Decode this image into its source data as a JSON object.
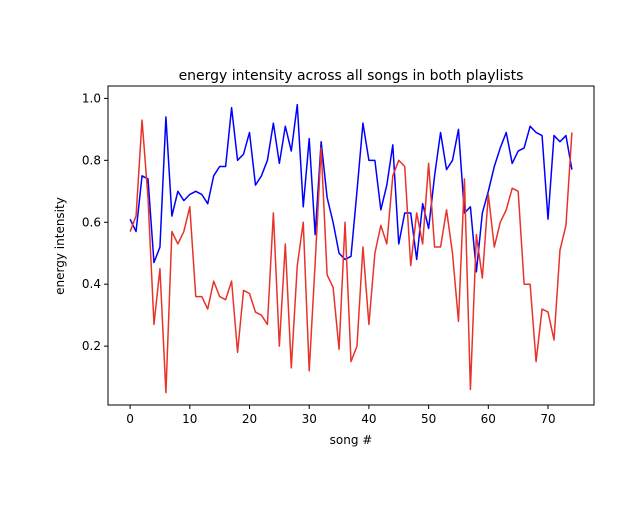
{
  "chart_data": {
    "type": "line",
    "title": "energy intensity across all songs in both playlists",
    "xlabel": "song #",
    "ylabel": "energy intensity",
    "xlim": [
      -3.7,
      77.7
    ],
    "ylim": [
      0.01,
      1.04
    ],
    "xticks": [
      0,
      10,
      20,
      30,
      40,
      50,
      60,
      70
    ],
    "yticks": [
      0.2,
      0.4,
      0.6,
      0.8,
      1.0
    ],
    "xtick_labels": [
      "0",
      "10",
      "20",
      "30",
      "40",
      "50",
      "60",
      "70"
    ],
    "ytick_labels": [
      "0.2",
      "0.4",
      "0.6",
      "0.8",
      "1.0"
    ],
    "grid": false,
    "series": [
      {
        "color": "#0000ff",
        "x": [
          0,
          1,
          2,
          3,
          4,
          5,
          6,
          7,
          8,
          9,
          10,
          11,
          12,
          13,
          14,
          15,
          16,
          17,
          18,
          19,
          20,
          21,
          22,
          23,
          24,
          25,
          26,
          27,
          28,
          29,
          30,
          31,
          32,
          33,
          34,
          35,
          36,
          37,
          38,
          39,
          40,
          41,
          42,
          43,
          44,
          45,
          46,
          47,
          48,
          49,
          50,
          51,
          52,
          53,
          54,
          55,
          56,
          57,
          58,
          59,
          60,
          61,
          62,
          63,
          64,
          65,
          66,
          67,
          68,
          69,
          70,
          71,
          72,
          73,
          74
        ],
        "values": [
          0.61,
          0.57,
          0.75,
          0.74,
          0.47,
          0.52,
          0.94,
          0.62,
          0.7,
          0.67,
          0.69,
          0.7,
          0.69,
          0.66,
          0.75,
          0.78,
          0.78,
          0.97,
          0.8,
          0.82,
          0.89,
          0.72,
          0.75,
          0.8,
          0.92,
          0.79,
          0.91,
          0.83,
          0.98,
          0.65,
          0.87,
          0.56,
          0.86,
          0.68,
          0.6,
          0.5,
          0.48,
          0.49,
          0.7,
          0.92,
          0.8,
          0.8,
          0.64,
          0.72,
          0.85,
          0.53,
          0.63,
          0.63,
          0.48,
          0.66,
          0.58,
          0.75,
          0.89,
          0.77,
          0.8,
          0.9,
          0.63,
          0.65,
          0.44,
          0.63,
          0.7,
          0.78,
          0.84,
          0.89,
          0.79,
          0.83,
          0.84,
          0.91,
          0.89,
          0.88,
          0.61,
          0.88,
          0.86,
          0.88,
          0.77
        ]
      },
      {
        "color": "#e8332a",
        "x": [
          0,
          1,
          2,
          3,
          4,
          5,
          6,
          7,
          8,
          9,
          10,
          11,
          12,
          13,
          14,
          15,
          16,
          17,
          18,
          19,
          20,
          21,
          22,
          23,
          24,
          25,
          26,
          27,
          28,
          29,
          30,
          31,
          32,
          33,
          34,
          35,
          36,
          37,
          38,
          39,
          40,
          41,
          42,
          43,
          44,
          45,
          46,
          47,
          48,
          49,
          50,
          51,
          52,
          53,
          54,
          55,
          56,
          57,
          58,
          59,
          60,
          61,
          62,
          63,
          64,
          65,
          66,
          67,
          68,
          69,
          70,
          71,
          72,
          73,
          74
        ],
        "values": [
          0.57,
          0.62,
          0.93,
          0.68,
          0.27,
          0.45,
          0.05,
          0.57,
          0.53,
          0.57,
          0.65,
          0.36,
          0.36,
          0.32,
          0.41,
          0.36,
          0.35,
          0.41,
          0.18,
          0.38,
          0.37,
          0.31,
          0.3,
          0.27,
          0.63,
          0.2,
          0.53,
          0.13,
          0.46,
          0.6,
          0.12,
          0.47,
          0.84,
          0.43,
          0.39,
          0.19,
          0.6,
          0.15,
          0.2,
          0.52,
          0.27,
          0.5,
          0.59,
          0.53,
          0.75,
          0.8,
          0.78,
          0.46,
          0.63,
          0.53,
          0.79,
          0.52,
          0.52,
          0.64,
          0.5,
          0.28,
          0.74,
          0.06,
          0.56,
          0.42,
          0.69,
          0.52,
          0.6,
          0.64,
          0.71,
          0.7,
          0.4,
          0.4,
          0.15,
          0.32,
          0.31,
          0.22,
          0.51,
          0.59,
          0.89
        ]
      }
    ]
  }
}
